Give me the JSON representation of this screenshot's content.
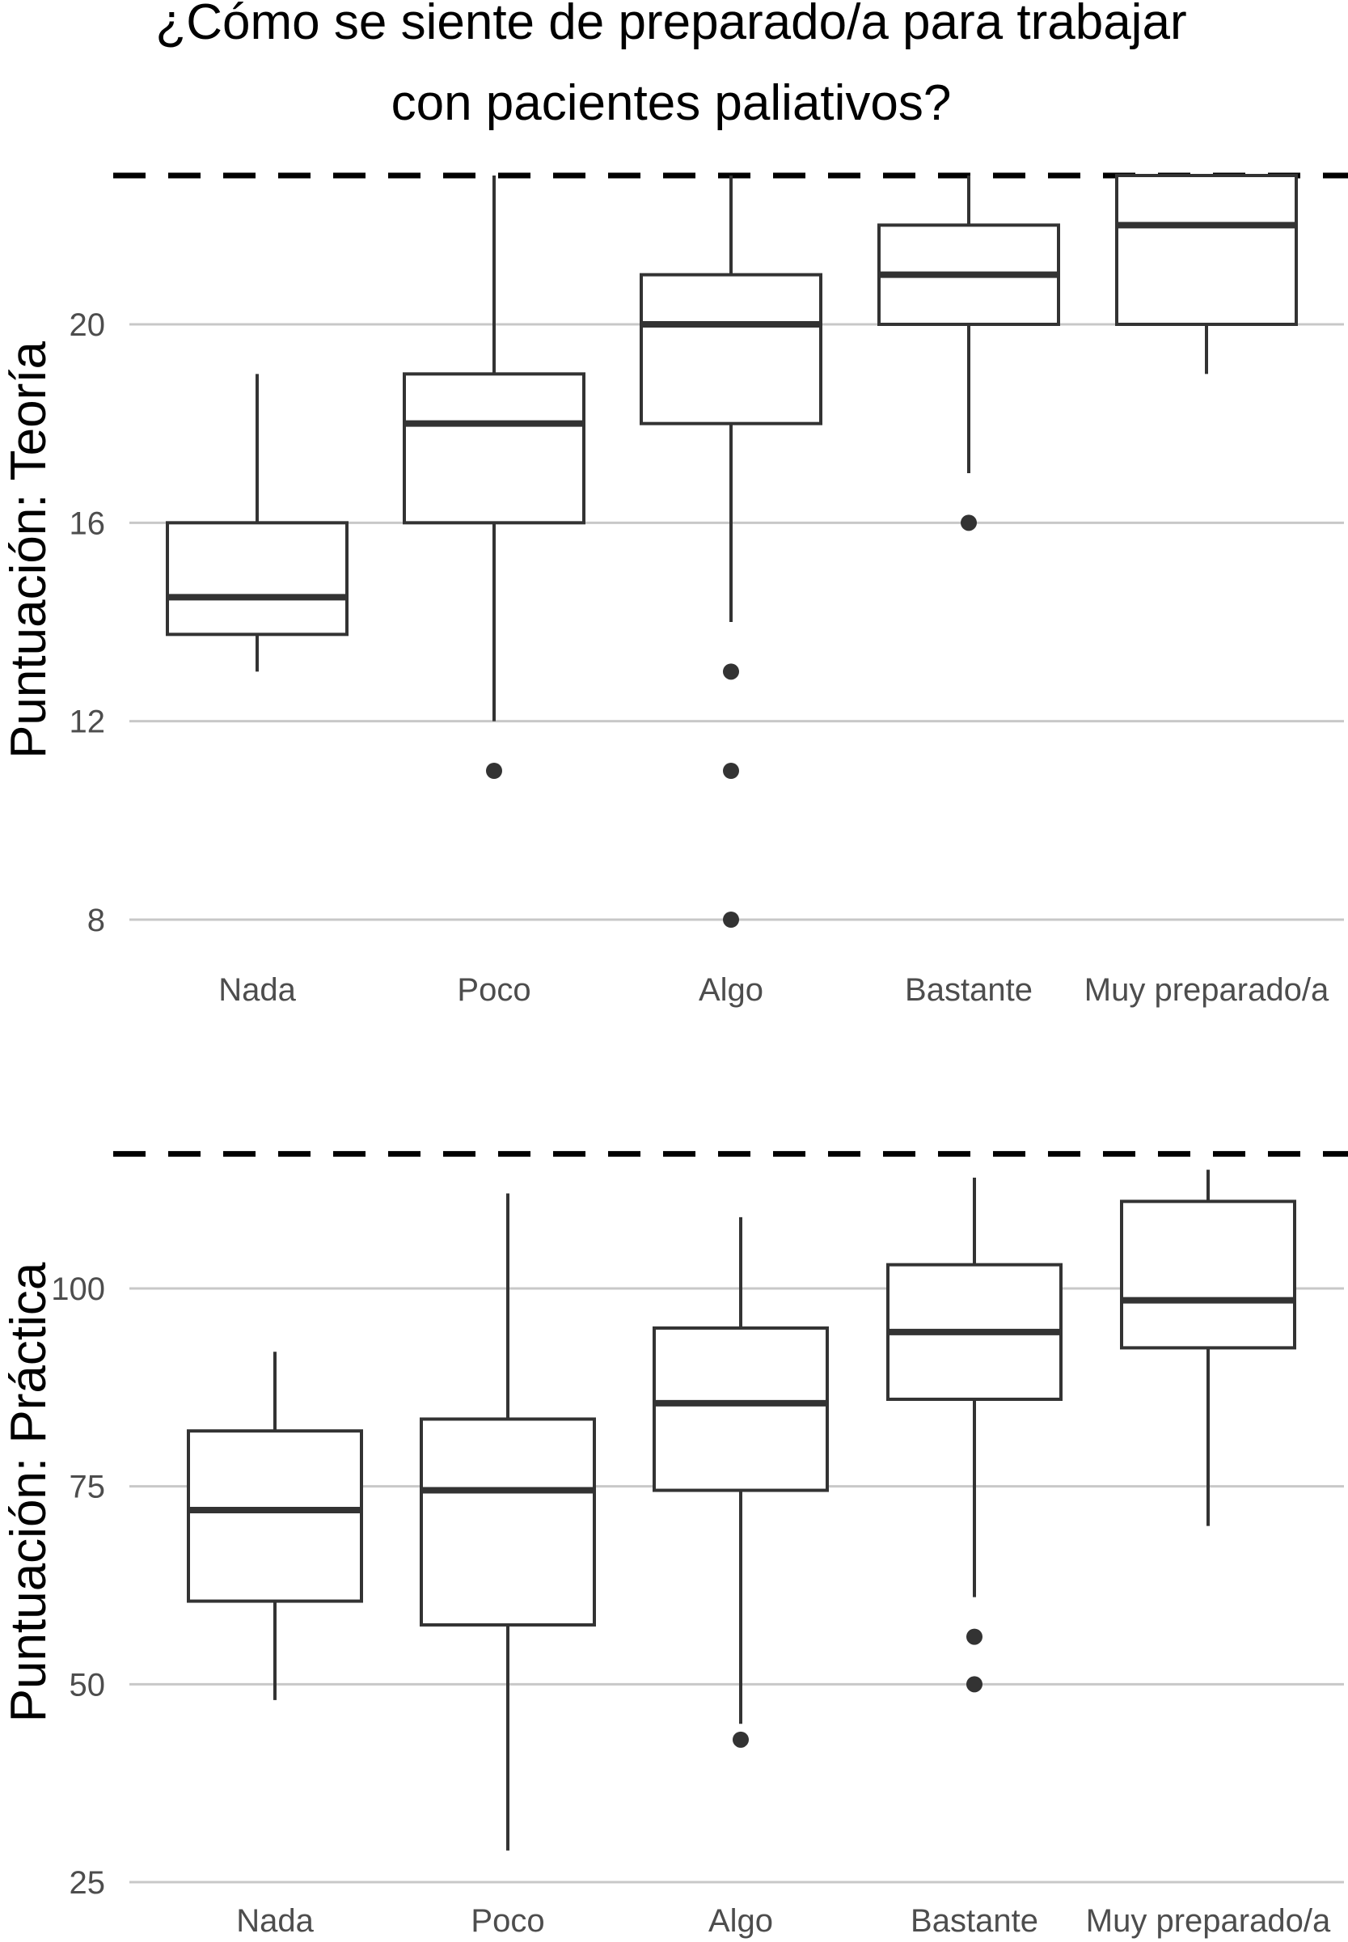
{
  "chart_data": [
    {
      "type": "boxplot",
      "title_lines": [
        "¿Cómo se siente de preparado/a para trabajar",
        "con pacientes paliativos?"
      ],
      "xlabel": "",
      "ylabel": "Puntuación: Teoría",
      "categories": [
        "Nada",
        "Poco",
        "Algo",
        "Bastante",
        "Muy preparado/a"
      ],
      "yticks": [
        8,
        12,
        16,
        20
      ],
      "ylim": [
        7,
        23.5
      ],
      "reference_line": 23,
      "grid": true,
      "boxes": [
        {
          "category": "Nada",
          "whisker_low": 13,
          "q1": 13.75,
          "median": 14.5,
          "q3": 16,
          "whisker_high": 19,
          "outliers": []
        },
        {
          "category": "Poco",
          "whisker_low": 12,
          "q1": 16,
          "median": 18,
          "q3": 19,
          "whisker_high": 23,
          "outliers": [
            11
          ]
        },
        {
          "category": "Algo",
          "whisker_low": 14,
          "q1": 18,
          "median": 20,
          "q3": 21,
          "whisker_high": 23,
          "outliers": [
            13,
            11,
            8
          ]
        },
        {
          "category": "Bastante",
          "whisker_low": 17,
          "q1": 20,
          "median": 21,
          "q3": 22,
          "whisker_high": 23,
          "outliers": [
            16
          ]
        },
        {
          "category": "Muy preparado/a",
          "whisker_low": 19,
          "q1": 20,
          "median": 22,
          "q3": 23,
          "whisker_high": 23,
          "outliers": []
        }
      ]
    },
    {
      "type": "boxplot",
      "xlabel": "",
      "ylabel": "Puntuación: Práctica",
      "categories": [
        "Nada",
        "Poco",
        "Algo",
        "Bastante",
        "Muy preparado/a"
      ],
      "yticks": [
        25,
        50,
        75,
        100
      ],
      "ylim": [
        25,
        118
      ],
      "reference_line": 117,
      "grid": true,
      "boxes": [
        {
          "category": "Nada",
          "whisker_low": 48,
          "q1": 60.5,
          "median": 72,
          "q3": 82,
          "whisker_high": 92,
          "outliers": []
        },
        {
          "category": "Poco",
          "whisker_low": 29,
          "q1": 57.5,
          "median": 74.5,
          "q3": 83.5,
          "whisker_high": 112,
          "outliers": []
        },
        {
          "category": "Algo",
          "whisker_low": 45,
          "q1": 74.5,
          "median": 85.5,
          "q3": 95,
          "whisker_high": 109,
          "outliers": [
            43
          ]
        },
        {
          "category": "Bastante",
          "whisker_low": 61,
          "q1": 86,
          "median": 94.5,
          "q3": 103,
          "whisker_high": 114,
          "outliers": [
            56,
            50
          ]
        },
        {
          "category": "Muy preparado/a",
          "whisker_low": 70,
          "q1": 92.5,
          "median": 98.5,
          "q3": 111,
          "whisker_high": 115,
          "outliers": []
        }
      ]
    }
  ]
}
